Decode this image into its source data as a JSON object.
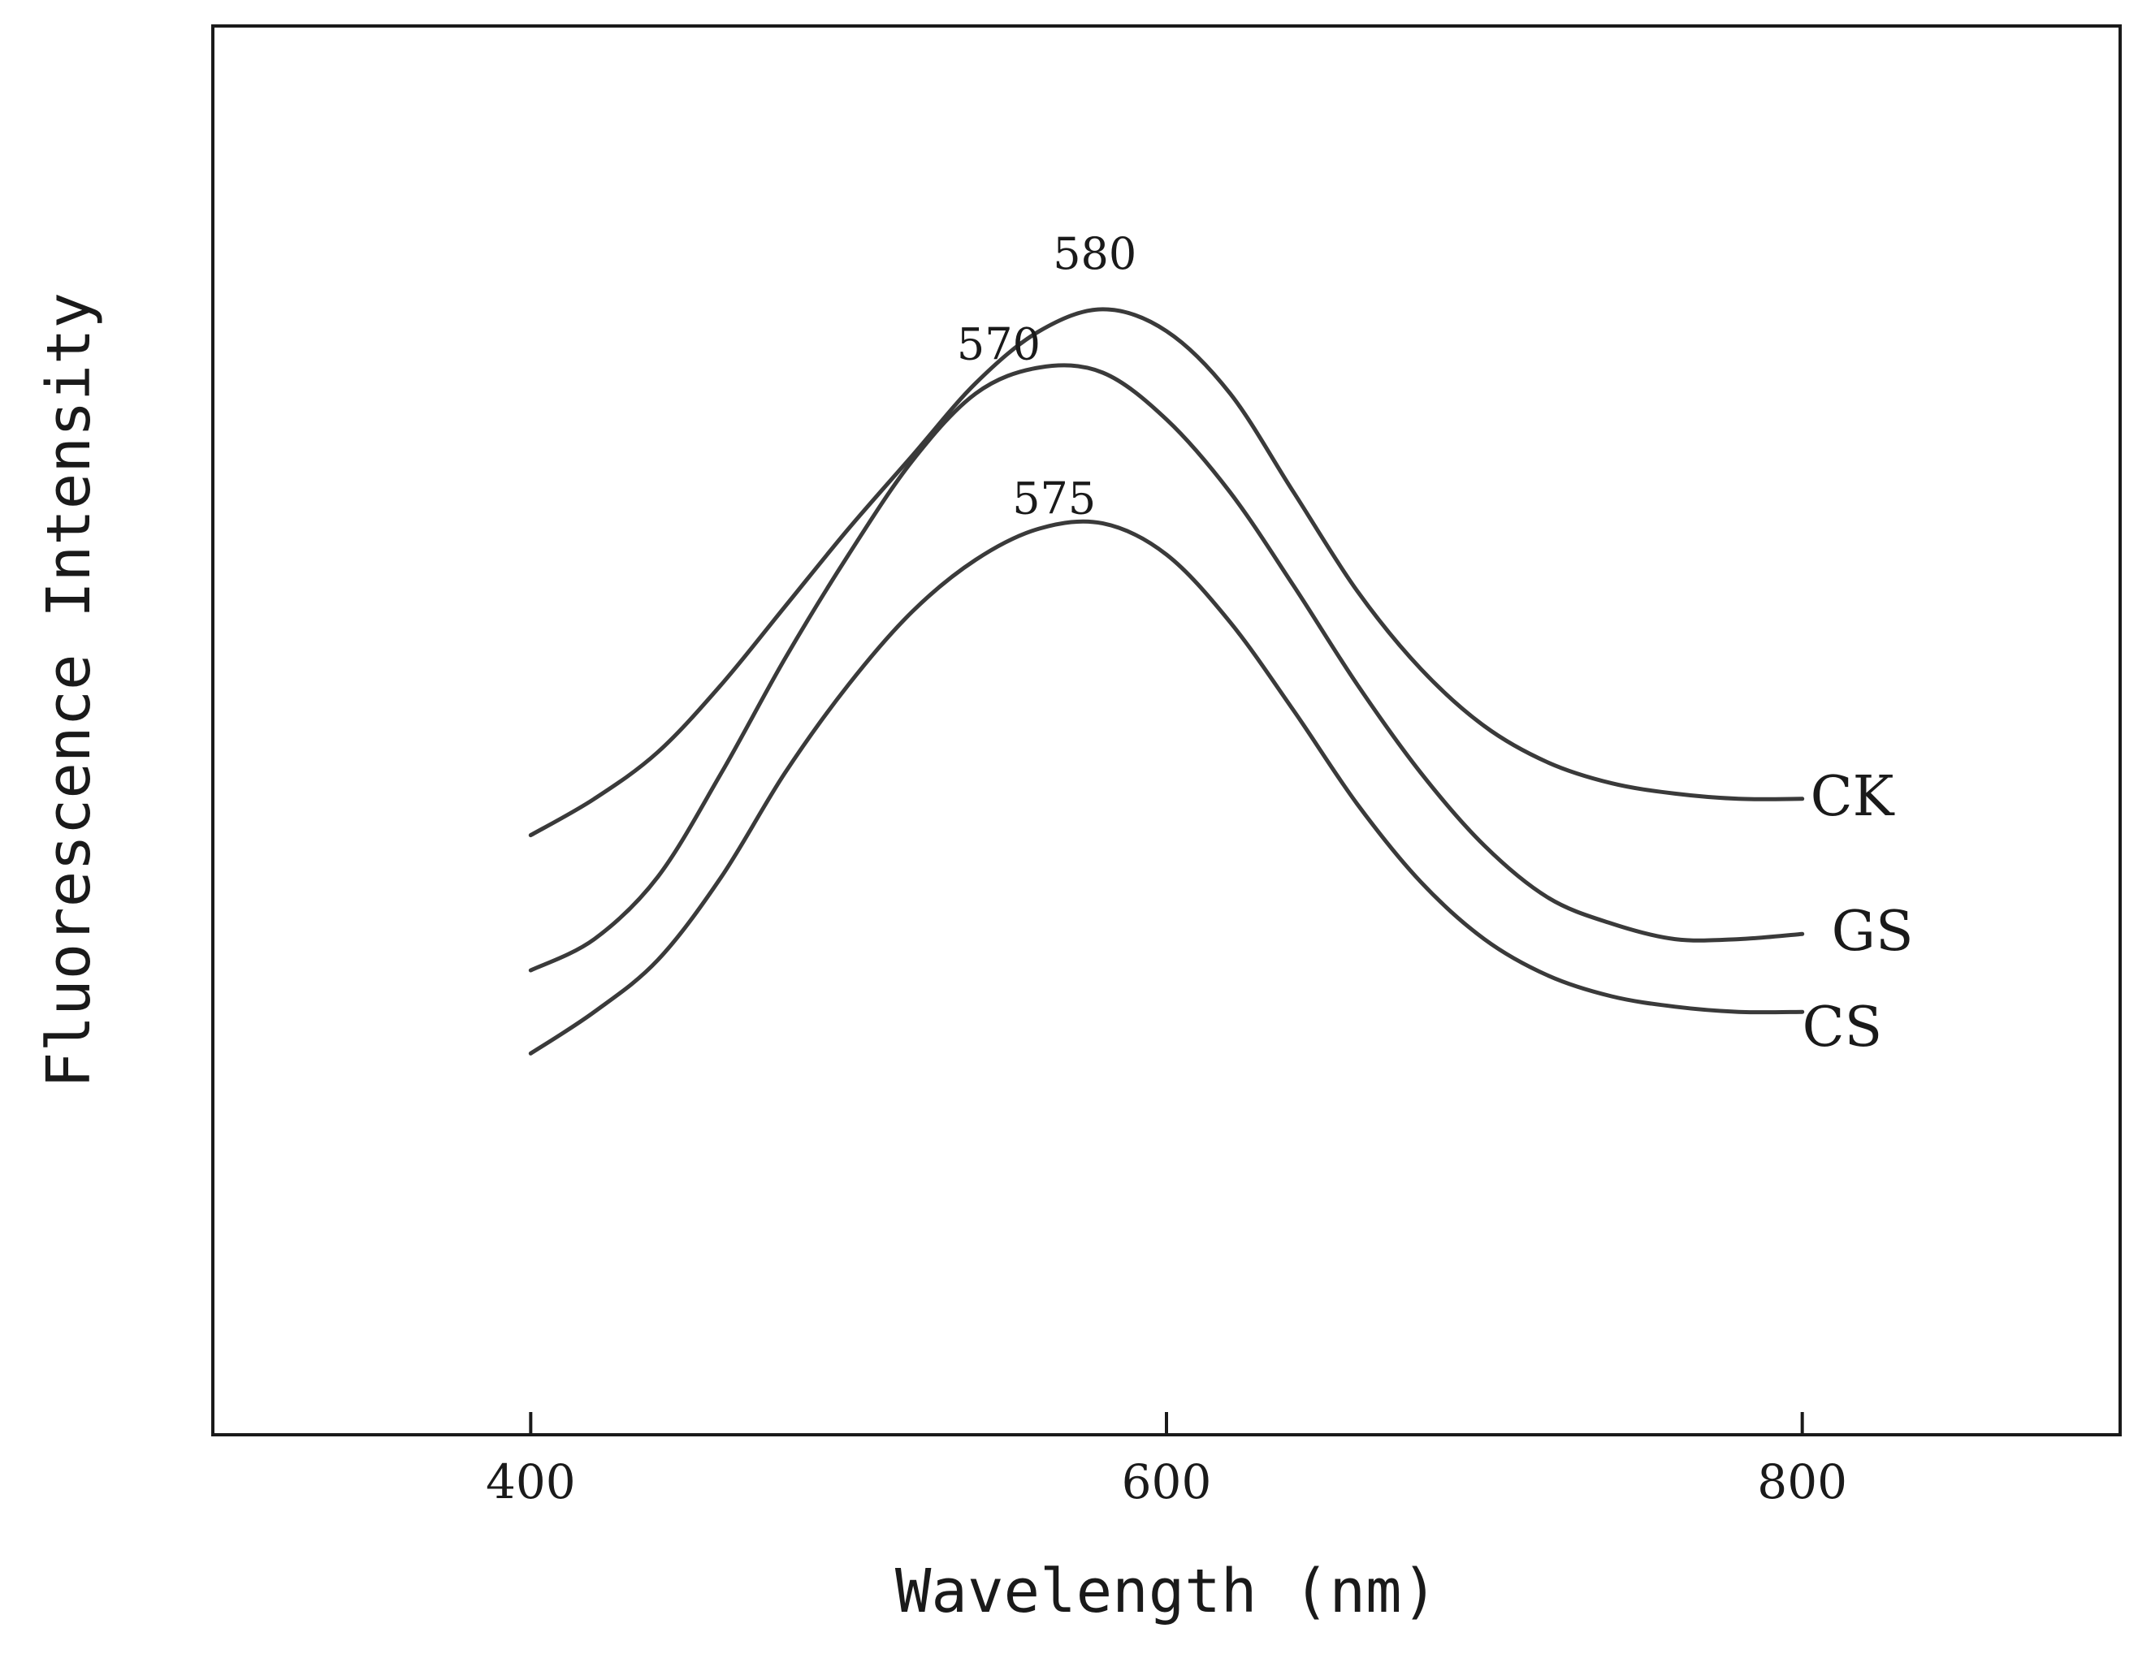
{
  "chart_data": {
    "type": "line",
    "title": "",
    "xlabel": "Wavelength (nm)",
    "ylabel": "Fluorescence Intensity",
    "xlim": [
      300,
      900
    ],
    "ylim": [
      0,
      100
    ],
    "xticks": [
      400,
      600,
      800
    ],
    "yticks": [],
    "grid": false,
    "legend": "inline labels at right end of curves",
    "x": [
      400,
      420,
      440,
      460,
      480,
      500,
      520,
      540,
      560,
      580,
      600,
      620,
      640,
      660,
      680,
      700,
      720,
      740,
      760,
      780,
      800
    ],
    "series": [
      {
        "name": "CK",
        "peak_label": "580",
        "values": [
          38,
          41.5,
          46,
          52.5,
          60,
          67.5,
          74.5,
          81.5,
          86.5,
          88.6,
          86.5,
          80.5,
          71,
          61.5,
          54,
          48.5,
          45,
          43,
          42,
          41.5,
          41.5
        ]
      },
      {
        "name": "GS",
        "peak_label": "570",
        "values": [
          25,
          28,
          34,
          44,
          55,
          65,
          74,
          80.5,
          83,
          82.5,
          78,
          71,
          62,
          52.5,
          44,
          37,
          32,
          29.5,
          28,
          28,
          28.5
        ]
      },
      {
        "name": "CS",
        "peak_label": "575",
        "values": [
          17,
          21,
          26,
          34,
          44,
          52.5,
          59.5,
          64.5,
          67.5,
          68,
          65,
          58.5,
          50,
          41,
          33.5,
          28,
          24.5,
          22.5,
          21.5,
          21,
          21
        ]
      }
    ]
  }
}
